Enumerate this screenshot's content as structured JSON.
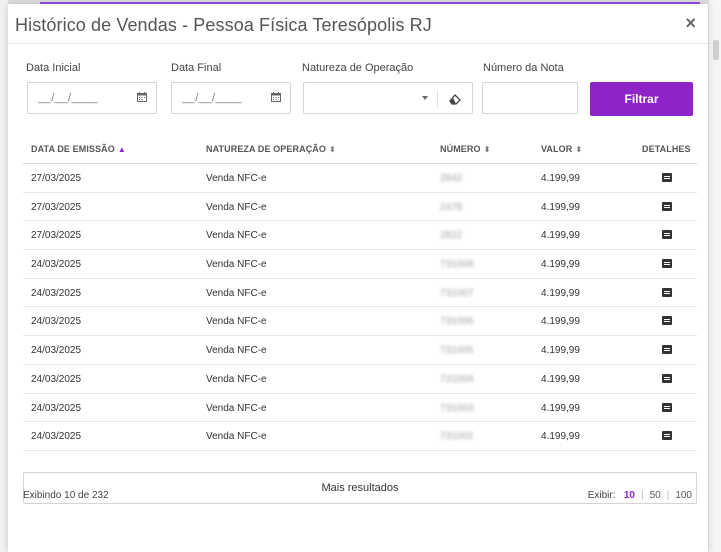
{
  "modal": {
    "title": "Histórico de Vendas - Pessoa Física Teresópolis RJ",
    "close_label": "×"
  },
  "filters": {
    "data_inicial_label": "Data Inicial",
    "data_inicial_value": "__/__/____",
    "data_final_label": "Data Final",
    "data_final_value": "__/__/____",
    "natureza_label": "Natureza de Operação",
    "natureza_value": "",
    "numero_label": "Número da Nota",
    "numero_value": "",
    "filter_button": "Filtrar"
  },
  "table": {
    "columns": [
      "DATA DE EMISSÃO",
      "NATUREZA DE OPERAÇÃO",
      "NÚMERO",
      "VALOR",
      "DETALHES"
    ],
    "rows": [
      {
        "data": "27/03/2025",
        "natureza": "Venda NFC-e",
        "numero": "2842",
        "valor": "4.199,99"
      },
      {
        "data": "27/03/2025",
        "natureza": "Venda NFC-e",
        "numero": "2478",
        "valor": "4.199,99"
      },
      {
        "data": "27/03/2025",
        "natureza": "Venda NFC-e",
        "numero": "2822",
        "valor": "4.199,99"
      },
      {
        "data": "24/03/2025",
        "natureza": "Venda NFC-e",
        "numero": "731008",
        "valor": "4.199,99"
      },
      {
        "data": "24/03/2025",
        "natureza": "Venda NFC-e",
        "numero": "731007",
        "valor": "4.199,99"
      },
      {
        "data": "24/03/2025",
        "natureza": "Venda NFC-e",
        "numero": "731006",
        "valor": "4.199,99"
      },
      {
        "data": "24/03/2025",
        "natureza": "Venda NFC-e",
        "numero": "731005",
        "valor": "4.199,99"
      },
      {
        "data": "24/03/2025",
        "natureza": "Venda NFC-e",
        "numero": "731004",
        "valor": "4.199,99"
      },
      {
        "data": "24/03/2025",
        "natureza": "Venda NFC-e",
        "numero": "731003",
        "valor": "4.199,99"
      },
      {
        "data": "24/03/2025",
        "natureza": "Venda NFC-e",
        "numero": "731002",
        "valor": "4.199,99"
      }
    ]
  },
  "footer": {
    "more_results": "Mais resultados",
    "count_text": "Exibindo 10 de 232",
    "show_label": "Exibir:",
    "page_sizes": [
      "10",
      "50",
      "100"
    ],
    "selected_page_size": "10"
  },
  "colors": {
    "accent": "#8e24c8"
  },
  "icons": {
    "calendar": "calendar-icon",
    "eraser": "eraser-icon",
    "details": "details-icon",
    "sort": "sort-icon"
  }
}
